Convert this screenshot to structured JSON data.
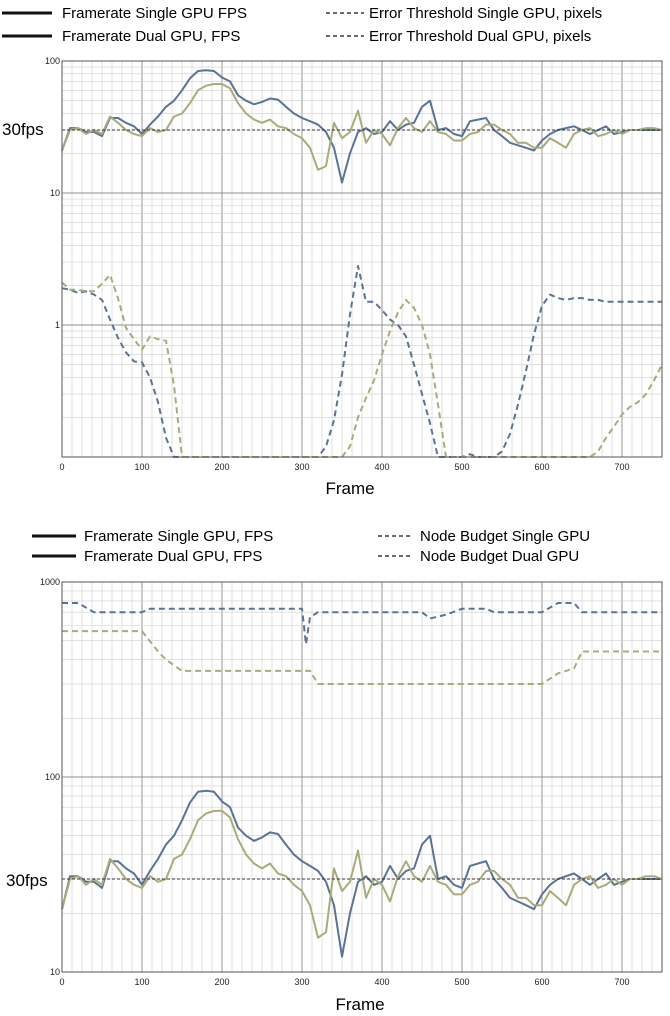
{
  "chart_data": [
    {
      "type": "line",
      "yscale": "log",
      "ylim": [
        0.1,
        100
      ],
      "xlim": [
        0,
        750
      ],
      "xlabel": "Frame",
      "ylabel": "",
      "grid": true,
      "legend_position": "top",
      "yticks": [
        "100",
        "10",
        "1"
      ],
      "xticks": [
        "0",
        "100",
        "200",
        "300",
        "400",
        "500",
        "600",
        "700"
      ],
      "threshold": {
        "label": "30fps",
        "value": 30
      },
      "colors": {
        "single": "#5b7394",
        "dual": "#a8ac7a",
        "threshold": "#333333",
        "grid_major": "#8c8c8c",
        "grid_minor": "#cfcfcf"
      },
      "series": [
        {
          "name": "Framerate Single GPU FPS",
          "style": "solid",
          "color": "#5b7394",
          "x": [
            0,
            10,
            20,
            30,
            40,
            50,
            60,
            70,
            80,
            90,
            100,
            110,
            120,
            130,
            140,
            150,
            160,
            170,
            180,
            190,
            200,
            210,
            220,
            230,
            240,
            250,
            260,
            270,
            280,
            290,
            300,
            310,
            320,
            330,
            340,
            350,
            360,
            370,
            380,
            390,
            400,
            410,
            420,
            430,
            440,
            450,
            460,
            470,
            480,
            490,
            500,
            510,
            520,
            530,
            540,
            550,
            560,
            570,
            580,
            590,
            600,
            610,
            620,
            630,
            640,
            650,
            660,
            670,
            680,
            690,
            700,
            710,
            720,
            730,
            740,
            750
          ],
          "y": [
            21,
            31,
            31,
            29,
            29,
            27,
            37,
            37,
            34,
            32,
            28,
            33,
            38,
            45,
            50,
            60,
            74,
            84,
            85,
            84,
            75,
            70,
            55,
            50,
            47,
            49,
            52,
            51,
            45,
            40,
            37,
            35,
            33,
            29,
            22,
            12,
            20,
            29,
            31,
            28,
            29,
            35,
            30,
            33,
            34,
            45,
            50,
            30,
            31,
            28,
            27,
            35,
            36,
            37,
            30,
            27,
            24,
            23,
            22,
            21,
            25,
            28,
            30,
            31,
            32,
            30,
            28,
            30,
            32,
            28,
            29,
            30,
            30,
            30,
            30,
            30
          ],
          "color_key": "single"
        },
        {
          "name": "Framerate Dual GPU, FPS",
          "style": "solid",
          "color": "#a8ac7a",
          "x": [
            0,
            10,
            20,
            30,
            40,
            50,
            60,
            70,
            80,
            90,
            100,
            110,
            120,
            130,
            140,
            150,
            160,
            170,
            180,
            190,
            200,
            210,
            220,
            230,
            240,
            250,
            260,
            270,
            280,
            290,
            300,
            310,
            320,
            330,
            340,
            350,
            360,
            370,
            380,
            390,
            400,
            410,
            420,
            430,
            440,
            450,
            460,
            470,
            480,
            490,
            500,
            510,
            520,
            530,
            540,
            550,
            560,
            570,
            580,
            590,
            600,
            610,
            620,
            630,
            640,
            650,
            660,
            670,
            680,
            690,
            700,
            710,
            720,
            730,
            740,
            750
          ],
          "y": [
            21,
            30,
            31,
            28,
            30,
            28,
            38,
            34,
            30,
            28,
            27,
            31,
            29,
            30,
            38,
            40,
            48,
            60,
            65,
            67,
            67,
            62,
            48,
            40,
            36,
            34,
            36,
            32,
            31,
            28,
            26,
            22,
            15,
            16,
            34,
            26,
            29,
            42,
            24,
            30,
            28,
            23,
            31,
            37,
            31,
            29,
            35,
            29,
            28,
            25,
            25,
            28,
            29,
            33,
            33,
            30,
            28,
            24,
            24,
            22,
            22,
            26,
            24,
            22,
            28,
            30,
            31,
            27,
            28,
            30,
            28,
            30,
            30,
            31,
            31,
            30
          ]
        },
        {
          "name": "Error Threshold Single GPU, pixels",
          "style": "dashed",
          "color": "#5b7394",
          "x": [
            0,
            10,
            20,
            30,
            40,
            50,
            60,
            70,
            80,
            90,
            100,
            110,
            120,
            130,
            140,
            150,
            160,
            300,
            320,
            330,
            340,
            350,
            360,
            370,
            380,
            390,
            400,
            410,
            420,
            430,
            440,
            450,
            460,
            470,
            480,
            500,
            510,
            520,
            530,
            540,
            550,
            560,
            570,
            580,
            590,
            600,
            610,
            620,
            630,
            640,
            650,
            660,
            670,
            680,
            690,
            700,
            710,
            720,
            730,
            740,
            750
          ],
          "y": [
            1.9,
            1.85,
            1.75,
            1.8,
            1.7,
            1.55,
            1.1,
            0.8,
            0.62,
            0.53,
            0.52,
            0.4,
            0.26,
            0.14,
            0.1,
            0.1,
            0.1,
            0.1,
            0.1,
            0.12,
            0.19,
            0.42,
            1.2,
            2.8,
            1.5,
            1.5,
            1.3,
            1.1,
            1.0,
            0.82,
            0.5,
            0.3,
            0.18,
            0.1,
            0.1,
            0.1,
            0.105,
            0.1,
            0.1,
            0.1,
            0.11,
            0.15,
            0.25,
            0.45,
            0.85,
            1.4,
            1.7,
            1.6,
            1.55,
            1.6,
            1.6,
            1.55,
            1.55,
            1.5,
            1.5,
            1.5,
            1.5,
            1.5,
            1.5,
            1.5,
            1.5
          ]
        },
        {
          "name": "Error Threshold Dual GPU, pixels",
          "style": "dashed",
          "color": "#a8ac7a",
          "x": [
            0,
            10,
            20,
            30,
            40,
            50,
            60,
            70,
            80,
            90,
            100,
            110,
            120,
            130,
            140,
            150,
            160,
            300,
            340,
            350,
            360,
            370,
            380,
            390,
            400,
            410,
            420,
            430,
            440,
            450,
            460,
            470,
            480,
            500,
            510,
            660,
            670,
            680,
            690,
            700,
            710,
            720,
            730,
            740,
            750
          ],
          "y": [
            2.1,
            1.85,
            1.85,
            1.8,
            1.8,
            2.05,
            2.4,
            1.6,
            0.95,
            0.78,
            0.65,
            0.82,
            0.78,
            0.76,
            0.35,
            0.1,
            0.1,
            0.1,
            0.1,
            0.1,
            0.12,
            0.2,
            0.28,
            0.38,
            0.6,
            0.9,
            1.25,
            1.55,
            1.35,
            1.0,
            0.6,
            0.25,
            0.1,
            0.1,
            0.1,
            0.1,
            0.11,
            0.14,
            0.17,
            0.21,
            0.24,
            0.26,
            0.3,
            0.38,
            0.5
          ]
        },
        {
          "name": "30fps reference",
          "style": "dashed-thin",
          "color": "#333333",
          "x": [
            0,
            750
          ],
          "y": [
            30,
            30
          ]
        }
      ]
    },
    {
      "type": "line",
      "yscale": "log",
      "ylim": [
        10,
        1000
      ],
      "xlim": [
        0,
        750
      ],
      "xlabel": "Frame",
      "ylabel": "",
      "grid": true,
      "legend_position": "top",
      "yticks": [
        "1000",
        "100",
        "10"
      ],
      "xticks": [
        "0",
        "100",
        "200",
        "300",
        "400",
        "500",
        "600",
        "700"
      ],
      "threshold": {
        "label": "30fps",
        "value": 30
      },
      "colors": {
        "single": "#5b7394",
        "dual": "#a8ac7a",
        "threshold": "#333333",
        "grid_major": "#8c8c8c",
        "grid_minor": "#cfcfcf"
      },
      "series": [
        {
          "name": "Framerate Single GPU, FPS",
          "style": "solid",
          "color": "#5b7394",
          "x": [
            0,
            10,
            20,
            30,
            40,
            50,
            60,
            70,
            80,
            90,
            100,
            110,
            120,
            130,
            140,
            150,
            160,
            170,
            180,
            190,
            200,
            210,
            220,
            230,
            240,
            250,
            260,
            270,
            280,
            290,
            300,
            310,
            320,
            330,
            340,
            350,
            360,
            370,
            380,
            390,
            400,
            410,
            420,
            430,
            440,
            450,
            460,
            470,
            480,
            490,
            500,
            510,
            520,
            530,
            540,
            550,
            560,
            570,
            580,
            590,
            600,
            610,
            620,
            630,
            640,
            650,
            660,
            670,
            680,
            690,
            700,
            710,
            720,
            730,
            740,
            750
          ],
          "y": [
            21,
            31,
            31,
            29,
            29,
            27,
            37,
            37,
            34,
            32,
            28,
            33,
            38,
            45,
            50,
            60,
            74,
            84,
            85,
            84,
            75,
            70,
            55,
            50,
            47,
            49,
            52,
            51,
            45,
            40,
            37,
            35,
            33,
            29,
            22,
            12,
            20,
            29,
            31,
            28,
            29,
            35,
            30,
            33,
            34,
            45,
            50,
            30,
            31,
            28,
            27,
            35,
            36,
            37,
            30,
            27,
            24,
            23,
            22,
            21,
            25,
            28,
            30,
            31,
            32,
            30,
            28,
            30,
            32,
            28,
            29,
            30,
            30,
            30,
            30,
            30
          ]
        },
        {
          "name": "Framerate Dual GPU, FPS",
          "style": "solid",
          "color": "#a8ac7a",
          "x": [
            0,
            10,
            20,
            30,
            40,
            50,
            60,
            70,
            80,
            90,
            100,
            110,
            120,
            130,
            140,
            150,
            160,
            170,
            180,
            190,
            200,
            210,
            220,
            230,
            240,
            250,
            260,
            270,
            280,
            290,
            300,
            310,
            320,
            330,
            340,
            350,
            360,
            370,
            380,
            390,
            400,
            410,
            420,
            430,
            440,
            450,
            460,
            470,
            480,
            490,
            500,
            510,
            520,
            530,
            540,
            550,
            560,
            570,
            580,
            590,
            600,
            610,
            620,
            630,
            640,
            650,
            660,
            670,
            680,
            690,
            700,
            710,
            720,
            730,
            740,
            750
          ],
          "y": [
            21,
            30,
            31,
            28,
            30,
            28,
            38,
            34,
            30,
            28,
            27,
            31,
            29,
            30,
            38,
            40,
            48,
            60,
            65,
            67,
            67,
            62,
            48,
            40,
            36,
            34,
            36,
            32,
            31,
            28,
            26,
            22,
            15,
            16,
            34,
            26,
            29,
            42,
            24,
            30,
            28,
            23,
            31,
            37,
            31,
            29,
            35,
            29,
            28,
            25,
            25,
            28,
            29,
            33,
            33,
            30,
            28,
            24,
            24,
            22,
            22,
            26,
            24,
            22,
            28,
            30,
            31,
            27,
            28,
            30,
            28,
            30,
            30,
            31,
            31,
            30
          ]
        },
        {
          "name": "Node Budget Single GPU",
          "style": "dashed",
          "color": "#5b7394",
          "x": [
            0,
            20,
            40,
            100,
            110,
            300,
            305,
            310,
            320,
            330,
            450,
            460,
            480,
            500,
            530,
            540,
            570,
            580,
            600,
            620,
            640,
            650,
            750
          ],
          "y": [
            780,
            780,
            700,
            700,
            730,
            730,
            480,
            660,
            700,
            700,
            700,
            650,
            680,
            730,
            730,
            700,
            700,
            700,
            700,
            780,
            780,
            700,
            700
          ]
        },
        {
          "name": "Node Budget Dual GPU",
          "style": "dashed",
          "color": "#a8ac7a",
          "x": [
            0,
            100,
            120,
            130,
            150,
            310,
            320,
            600,
            620,
            630,
            640,
            650,
            750
          ],
          "y": [
            560,
            560,
            440,
            400,
            350,
            350,
            300,
            300,
            340,
            350,
            360,
            440,
            440
          ]
        },
        {
          "name": "30fps reference",
          "style": "dashed-thin",
          "color": "#333333",
          "x": [
            0,
            750
          ],
          "y": [
            30,
            30
          ]
        }
      ]
    }
  ]
}
